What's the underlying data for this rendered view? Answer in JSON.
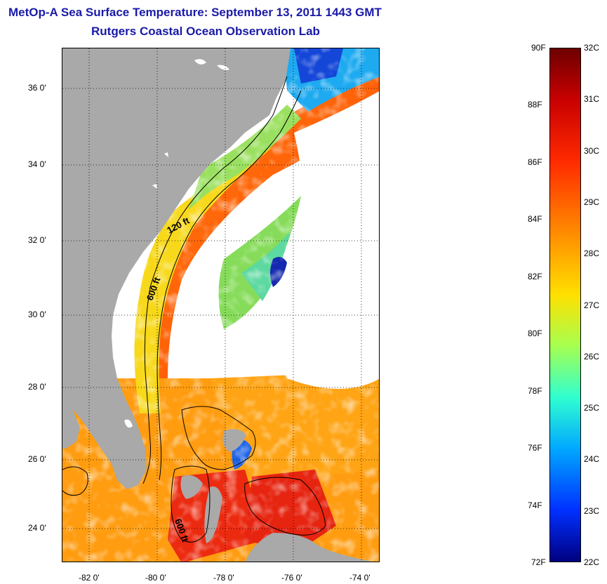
{
  "header": {
    "title_line_1": "MetOp-A Sea Surface Temperature:  September 13, 2011 1443 GMT",
    "title_line_2": "Rutgers Coastal Ocean Observation Lab"
  },
  "map": {
    "lon_ticks": [
      "-82 0'",
      "-80 0'",
      "-78 0'",
      "-76 0'",
      "-74 0'"
    ],
    "lat_ticks": [
      "36 0'",
      "34 0'",
      "32 0'",
      "30 0'",
      "28 0'",
      "26 0'",
      "24 0'"
    ],
    "contour_labels": [
      "120 ft",
      "600 ft",
      "600 ft"
    ],
    "land_color": "#a9a9a9",
    "no_data_color": "#ffffff"
  },
  "colorbar": {
    "fahrenheit_labels": [
      "90F",
      "88F",
      "86F",
      "84F",
      "82F",
      "80F",
      "78F",
      "76F",
      "74F",
      "72F"
    ],
    "celsius_labels": [
      "32C",
      "31C",
      "30C",
      "29C",
      "28C",
      "27C",
      "26C",
      "25C",
      "24C",
      "23C",
      "22C"
    ],
    "range_celsius": [
      22,
      32
    ],
    "colormap": "jet"
  }
}
